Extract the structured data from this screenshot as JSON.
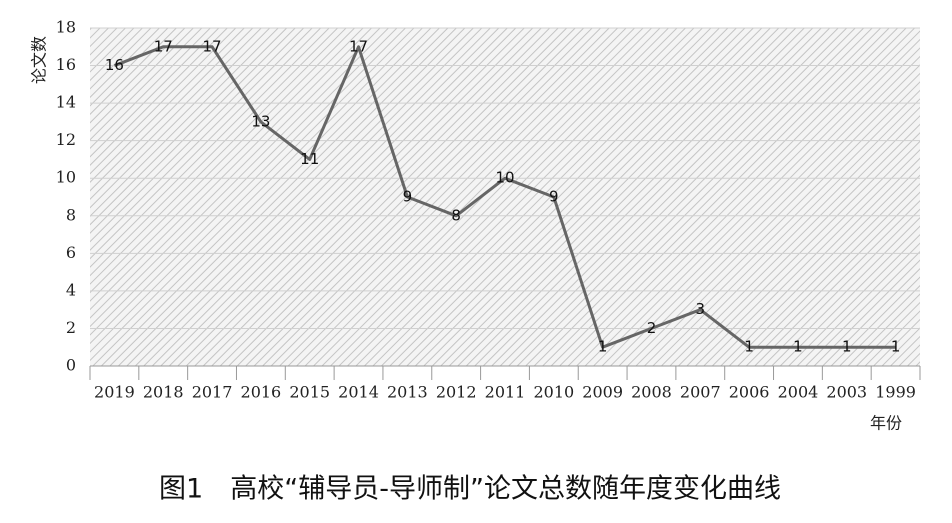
{
  "chart_data": {
    "type": "line",
    "caption": "图1　高校“辅导员-导师制”论文总数随年度变化曲线",
    "y_label": "论文数",
    "x_label": "年份",
    "categories": [
      "2019",
      "2018",
      "2017",
      "2016",
      "2015",
      "2014",
      "2013",
      "2012",
      "2011",
      "2010",
      "2009",
      "2008",
      "2007",
      "2006",
      "2004",
      "2003",
      "1999"
    ],
    "values": [
      16,
      17,
      17,
      13,
      11,
      17,
      9,
      8,
      10,
      9,
      1,
      2,
      3,
      1,
      1,
      1,
      1
    ],
    "color": "#666666",
    "ylim": [
      0,
      18
    ],
    "yticks": [
      0,
      2,
      4,
      6,
      8,
      10,
      12,
      14,
      16,
      18
    ],
    "grid": true
  }
}
